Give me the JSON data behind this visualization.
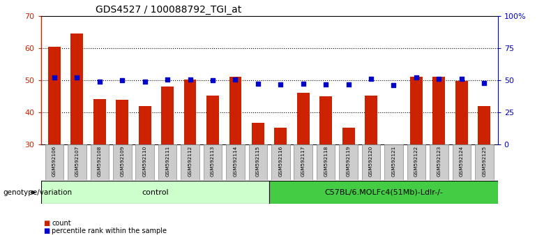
{
  "title": "GDS4527 / 100088792_TGI_at",
  "samples": [
    "GSM592106",
    "GSM592107",
    "GSM592108",
    "GSM592109",
    "GSM592110",
    "GSM592111",
    "GSM592112",
    "GSM592113",
    "GSM592114",
    "GSM592115",
    "GSM592116",
    "GSM592117",
    "GSM592118",
    "GSM592119",
    "GSM592120",
    "GSM592121",
    "GSM592122",
    "GSM592123",
    "GSM592124",
    "GSM592125"
  ],
  "counts": [
    60.5,
    64.5,
    44.2,
    44.0,
    42.0,
    48.0,
    50.3,
    45.3,
    51.2,
    36.8,
    35.2,
    46.2,
    45.0,
    35.3,
    45.2,
    26.2,
    51.0,
    51.2,
    49.8,
    42.0
  ],
  "percentiles": [
    52,
    52,
    49,
    50.2,
    49,
    50.3,
    50.5,
    50,
    50.8,
    47.2,
    47.0,
    47.2,
    47.0,
    47.0,
    51.0,
    46.0,
    52.0,
    51.0,
    51.0,
    48.0
  ],
  "ylim_left": [
    30,
    70
  ],
  "ylim_right": [
    0,
    100
  ],
  "yticks_left": [
    30,
    40,
    50,
    60,
    70
  ],
  "yticks_right": [
    0,
    25,
    50,
    75,
    100
  ],
  "ytick_labels_right": [
    "0",
    "25",
    "50",
    "75",
    "100%"
  ],
  "bar_color": "#cc2200",
  "dot_color": "#0000cc",
  "bar_bottom": 30,
  "control_count": 10,
  "group_labels": [
    "control",
    "C57BL/6.MOLFc4(51Mb)-Ldlr-/-"
  ],
  "light_green": "#ccffcc",
  "dark_green": "#44cc44",
  "gray_box": "#cccccc",
  "bg_color": "#ffffff"
}
